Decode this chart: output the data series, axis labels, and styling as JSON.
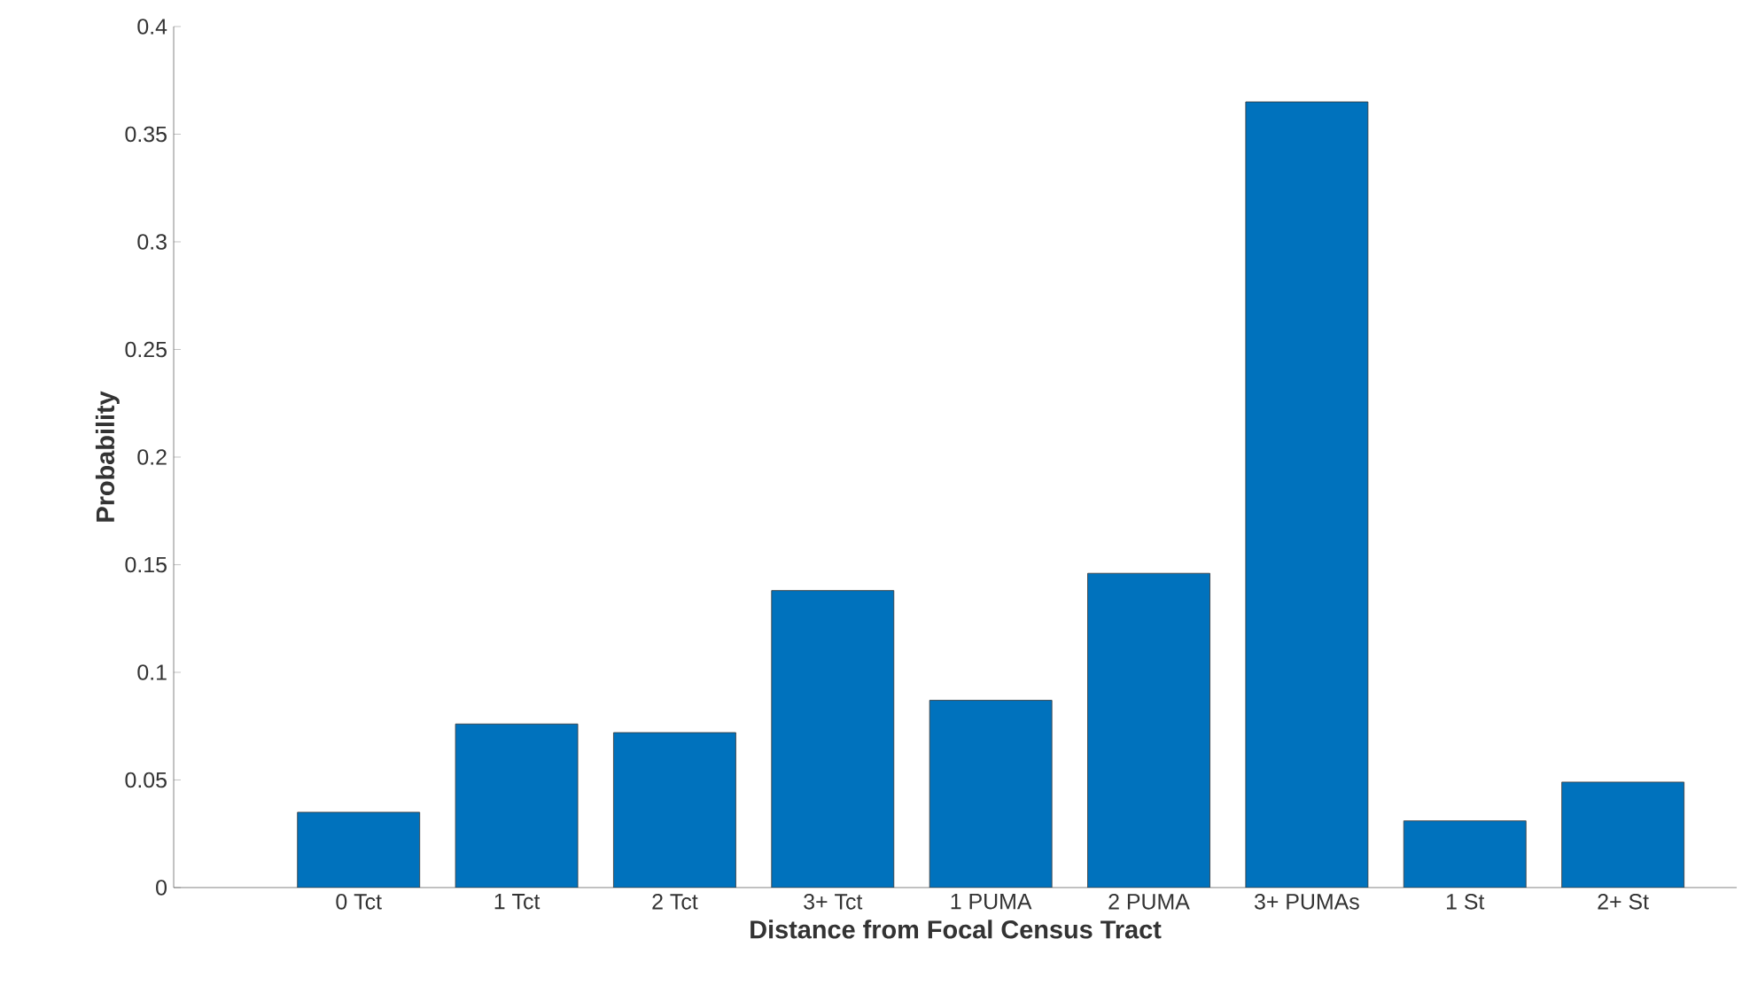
{
  "chart_data": {
    "type": "bar",
    "xlabel": "Distance from Focal Census Tract",
    "ylabel": "Probability",
    "categories": [
      "0 Tct",
      "1 Tct",
      "2 Tct",
      "3+ Tct",
      "1 PUMA",
      "2 PUMA",
      "3+ PUMAs",
      "1 St",
      "2+ St"
    ],
    "values": [
      0.035,
      0.076,
      0.072,
      0.138,
      0.087,
      0.146,
      0.365,
      0.031,
      0.049
    ],
    "color": "#0072bd",
    "ylim": [
      0,
      0.4
    ],
    "yticks": [
      0,
      0.05,
      0.1,
      0.15,
      0.2,
      0.25,
      0.3,
      0.35,
      0.4
    ]
  }
}
